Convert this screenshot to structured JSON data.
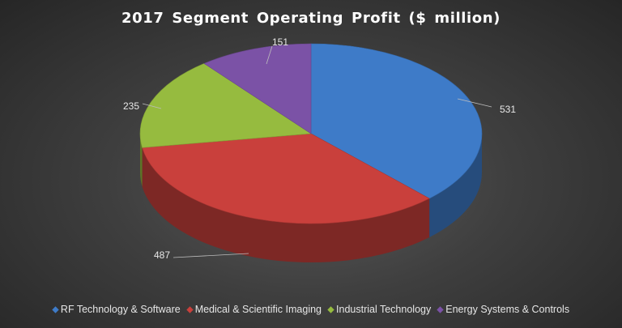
{
  "chart_data": {
    "type": "pie",
    "title": "2017 Segment Operating Profit ($ million)",
    "slices": [
      {
        "label": "RF Technology & Software",
        "value": 531,
        "color": "#3e7bc8"
      },
      {
        "label": "Medical & Scientific Imaging",
        "value": 487,
        "color": "#c9403c"
      },
      {
        "label": "Industrial Technology",
        "value": 235,
        "color": "#96bb3f"
      },
      {
        "label": "Energy Systems & Controls",
        "value": 151,
        "color": "#7b52a6"
      }
    ],
    "legend_position": "bottom",
    "style": "3d"
  }
}
